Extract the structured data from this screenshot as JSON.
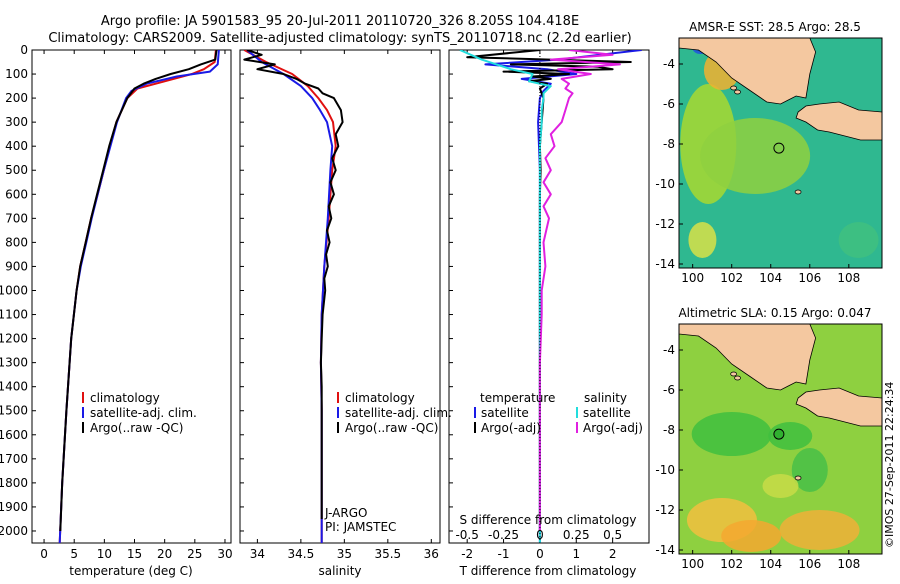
{
  "header": {
    "line1": "Argo profile: JA 5901583_95 20-Jul-2011 20110720_326 8.205S 104.418E",
    "line2": "Climatology: CARS2009. Satellite-adjusted climatology: synTS_20110718.nc (2.2d earlier)"
  },
  "colors": {
    "climatology": "#e01010",
    "satellite": "#1a1ae6",
    "argo": "#000000",
    "salinity_sat": "#22dddd",
    "salinity_argo": "#e020e0",
    "land": "#f4c8a0",
    "sea_warm": "#f0a030",
    "sea_cool": "#30b070"
  },
  "depth_axis": {
    "ticks": [
      "0",
      "100",
      "200",
      "300",
      "400",
      "500",
      "600",
      "700",
      "800",
      "900",
      "1000",
      "1100",
      "1200",
      "1300",
      "1400",
      "1500",
      "1600",
      "1700",
      "1800",
      "1900",
      "2000"
    ]
  },
  "chart_data": [
    {
      "type": "line",
      "id": "temperature",
      "xlabel": "temperature (deg C)",
      "ylabel": "depth",
      "xlim": [
        -2,
        31
      ],
      "ylim": [
        2050,
        0
      ],
      "xticks": [
        "0",
        "5",
        "10",
        "15",
        "20",
        "25",
        "30"
      ],
      "legend": [
        "climatology",
        "satellite-adj. clim.",
        "Argo(..raw -QC)"
      ],
      "legend_position": "lower-center",
      "series": [
        {
          "name": "climatology",
          "depth": [
            0,
            50,
            80,
            100,
            130,
            160,
            200,
            300,
            400,
            500,
            600,
            700,
            800,
            900,
            1000,
            1200,
            1500,
            1800,
            2050
          ],
          "value": [
            28.5,
            28.3,
            26.5,
            24.5,
            20.0,
            15.5,
            13.8,
            12.0,
            10.9,
            9.9,
            8.9,
            7.8,
            6.9,
            6.0,
            5.4,
            4.5,
            3.7,
            3.0,
            2.6
          ]
        },
        {
          "name": "satellite-adj. clim.",
          "depth": [
            0,
            60,
            90,
            110,
            140,
            170,
            200,
            300,
            400,
            500,
            600,
            700,
            800,
            900,
            1000,
            1200,
            1500,
            1800,
            2050
          ],
          "value": [
            29.0,
            28.8,
            27.5,
            22.0,
            17.0,
            14.5,
            13.6,
            12.1,
            11.0,
            9.9,
            8.9,
            7.9,
            7.0,
            6.1,
            5.4,
            4.5,
            3.7,
            3.0,
            2.6
          ]
        },
        {
          "name": "Argo(..raw -QC)",
          "depth": [
            0,
            40,
            60,
            80,
            100,
            120,
            140,
            160,
            200,
            300,
            400,
            500,
            600,
            700,
            800,
            900,
            1000,
            1200,
            1500,
            1800,
            2000
          ],
          "value": [
            28.6,
            28.4,
            26.0,
            24.0,
            21.0,
            18.5,
            16.5,
            15.0,
            13.8,
            12.0,
            10.8,
            9.8,
            8.8,
            7.8,
            6.9,
            6.0,
            5.4,
            4.5,
            3.7,
            3.0,
            2.7
          ]
        }
      ]
    },
    {
      "type": "line",
      "id": "salinity",
      "xlabel": "salinity",
      "ylabel": "depth",
      "xlim": [
        33.8,
        36.1
      ],
      "ylim": [
        2050,
        0
      ],
      "xticks": [
        "34",
        "34.5",
        "35",
        "35.5",
        "36"
      ],
      "legend": [
        "climatology",
        "satellite-adj. clim.",
        "Argo(..raw -QC)"
      ],
      "legend_position": "lower-center",
      "annotations": [
        "J-ARGO",
        "PI: JAMSTEC"
      ],
      "series": [
        {
          "name": "climatology",
          "depth": [
            0,
            50,
            100,
            150,
            200,
            250,
            300,
            400,
            500,
            700,
            900,
            1100,
            1300,
            1500,
            1800,
            2050
          ],
          "value": [
            33.85,
            34.1,
            34.4,
            34.58,
            34.7,
            34.8,
            34.87,
            34.9,
            34.86,
            34.82,
            34.77,
            34.74,
            34.73,
            34.74,
            34.74,
            34.74
          ]
        },
        {
          "name": "satellite-adj. clim.",
          "depth": [
            0,
            50,
            100,
            150,
            200,
            250,
            300,
            400,
            500,
            700,
            900,
            1100,
            1300,
            1500,
            1800,
            2050
          ],
          "value": [
            33.88,
            34.05,
            34.3,
            34.5,
            34.63,
            34.72,
            34.8,
            34.86,
            34.84,
            34.81,
            34.77,
            34.74,
            34.73,
            34.74,
            34.74,
            34.74
          ]
        },
        {
          "name": "Argo(..raw -QC)",
          "depth": [
            0,
            20,
            40,
            60,
            80,
            100,
            120,
            140,
            160,
            180,
            200,
            250,
            300,
            350,
            400,
            450,
            500,
            550,
            600,
            650,
            700,
            750,
            800,
            850,
            900,
            950,
            1000,
            1100,
            1200,
            1300,
            1400,
            1500,
            1600,
            1800,
            1950
          ],
          "value": [
            33.88,
            34.05,
            33.85,
            34.2,
            34.0,
            34.3,
            34.45,
            34.55,
            34.7,
            34.75,
            34.88,
            34.96,
            34.98,
            34.9,
            34.93,
            34.86,
            34.9,
            34.84,
            34.88,
            34.82,
            34.85,
            34.8,
            34.83,
            34.79,
            34.81,
            34.77,
            34.78,
            34.75,
            34.74,
            34.73,
            34.74,
            34.74,
            34.74,
            34.74,
            34.74
          ]
        }
      ]
    },
    {
      "type": "line",
      "id": "difference",
      "xlabel": "T difference from climatology",
      "xlabel_top": "S difference from climatology",
      "ylabel": "depth",
      "xlim": [
        -2.5,
        3.0
      ],
      "ylim": [
        2050,
        0
      ],
      "xticks": [
        "-2",
        "-1",
        "0",
        "1",
        "2"
      ],
      "xticks_S": [
        "-0.5",
        "-0.25",
        "0",
        "0.25",
        "0.5"
      ],
      "legend_temperature_title": "temperature",
      "legend_salinity_title": "salinity",
      "legend": [
        "satellite",
        "Argo(-adj)",
        "satellite",
        "Argo(-adj)"
      ],
      "series": [
        {
          "name": "temperature satellite",
          "depth": [
            0,
            40,
            60,
            80,
            100,
            120,
            140,
            170,
            200,
            300,
            500,
            700,
            900,
            1100,
            1300,
            1500,
            1800,
            2050
          ],
          "value": [
            2.8,
            0.5,
            -1.5,
            0.2,
            1.0,
            -0.5,
            0.3,
            0.1,
            0.0,
            -0.05,
            0.0,
            0.0,
            0.0,
            0.0,
            0.0,
            0.0,
            0.0,
            0.0
          ]
        },
        {
          "name": "temperature Argo(-adj)",
          "depth": [
            0,
            30,
            50,
            60,
            70,
            80,
            90,
            100,
            110,
            120,
            130,
            140,
            160,
            200,
            300,
            400,
            500,
            600,
            700,
            900,
            1100,
            1300,
            1500,
            1800,
            2000
          ],
          "value": [
            0.0,
            -2.0,
            2.5,
            -0.8,
            1.6,
            2.0,
            -1.0,
            0.8,
            -0.2,
            0.3,
            -0.3,
            0.2,
            0.0,
            0.1,
            0.05,
            0.0,
            0.02,
            0.0,
            0.0,
            0.0,
            0.0,
            0.0,
            0.0,
            0.0,
            0.0
          ]
        },
        {
          "name": "salinity satellite",
          "depth": [
            0,
            40,
            80,
            100,
            130,
            150,
            180,
            200,
            250,
            300,
            400,
            500,
            600,
            700,
            900,
            1100,
            1300,
            1500,
            1800,
            2050
          ],
          "value": [
            -2.2,
            -1.6,
            -0.8,
            -0.2,
            -0.3,
            0.3,
            0.1,
            0.1,
            0.05,
            0.05,
            0.0,
            0.0,
            0.0,
            0.0,
            0.0,
            0.0,
            0.0,
            0.0,
            0.0,
            0.0
          ]
        },
        {
          "name": "salinity Argo(-adj)",
          "depth": [
            0,
            20,
            40,
            60,
            80,
            100,
            120,
            140,
            160,
            180,
            200,
            250,
            300,
            350,
            400,
            450,
            500,
            550,
            600,
            650,
            700,
            800,
            900,
            1000,
            1100,
            1300,
            1500,
            1800,
            2000
          ],
          "value": [
            0.8,
            2.0,
            0.3,
            2.2,
            0.5,
            1.4,
            0.6,
            0.8,
            0.7,
            0.9,
            0.8,
            0.7,
            0.6,
            0.3,
            0.4,
            0.15,
            0.3,
            0.1,
            0.3,
            0.1,
            0.25,
            0.1,
            0.15,
            0.05,
            0.05,
            0.0,
            0.0,
            0.0,
            0.0
          ]
        }
      ]
    },
    {
      "type": "heatmap",
      "id": "sst_map",
      "title": "AMSR-E SST: 28.5 Argo: 28.5",
      "xlim": [
        99.3,
        109.7
      ],
      "ylim": [
        -14.2,
        -2.7
      ],
      "xticks": [
        "100",
        "102",
        "104",
        "106",
        "108"
      ],
      "yticks": [
        "-4",
        "-6",
        "-8",
        "-10",
        "-12",
        "-14"
      ],
      "argo_position": {
        "lon": 104.418,
        "lat": -8.205
      }
    },
    {
      "type": "heatmap",
      "id": "sla_map",
      "title": "Altimetric SLA: 0.15 Argo: 0.047",
      "xlim": [
        99.3,
        109.7
      ],
      "ylim": [
        -14.2,
        -2.7
      ],
      "xticks": [
        "100",
        "102",
        "104",
        "106",
        "108"
      ],
      "yticks": [
        "-4",
        "-6",
        "-8",
        "-10",
        "-12",
        "-14"
      ],
      "argo_position": {
        "lon": 104.418,
        "lat": -8.205
      }
    }
  ],
  "footer": {
    "credit": "©IMOS 27-Sep-2011 22:24:34"
  }
}
